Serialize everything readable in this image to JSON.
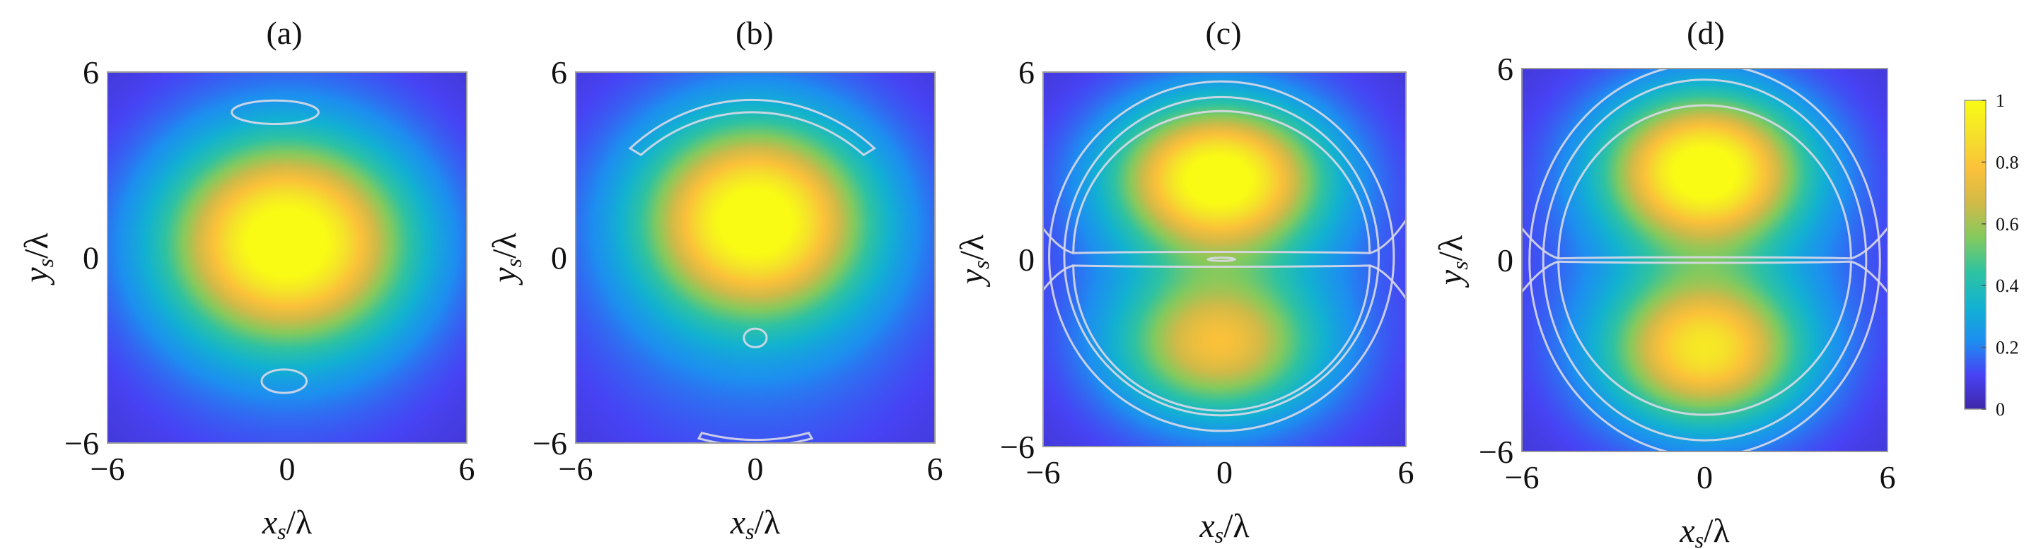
{
  "chart_data": [
    {
      "type": "heatmap",
      "title": "(a)",
      "xlabel_main": "x",
      "xlabel_sub": "s",
      "xlabel_tail": "/λ",
      "ylabel_main": "y",
      "ylabel_sub": "s",
      "ylabel_tail": "/λ",
      "xlim": [
        -6,
        6
      ],
      "ylim": [
        -6,
        6
      ],
      "xticks": [
        "−6",
        "0",
        "6"
      ],
      "yticks": [
        "−6",
        "0",
        "6"
      ],
      "field": {
        "blobs": [
          {
            "x": 0,
            "y": 0.5,
            "sx": 2.7,
            "sy": 2.2,
            "amp": 0.9
          }
        ],
        "halo": {
          "sx": 4.8,
          "sy": 5.2,
          "amp": 0.18
        }
      },
      "contours": [
        {
          "shape": "ellipse",
          "cx": -0.4,
          "cy": 4.7,
          "rx": 1.45,
          "ry": 0.38
        },
        {
          "shape": "ellipse",
          "cx": -0.1,
          "cy": -4.0,
          "rx": 0.75,
          "ry": 0.38
        }
      ]
    },
    {
      "type": "heatmap",
      "title": "(b)",
      "xlabel_main": "x",
      "xlabel_sub": "s",
      "xlabel_tail": "/λ",
      "ylabel_main": "y",
      "ylabel_sub": "s",
      "ylabel_tail": "/λ",
      "xlim": [
        -6,
        6
      ],
      "ylim": [
        -6,
        6
      ],
      "xticks": [
        "−6",
        "0",
        "6"
      ],
      "yticks": [
        "−6",
        "0",
        "6"
      ],
      "field": {
        "blobs": [
          {
            "x": 0,
            "y": 1.2,
            "sx": 2.5,
            "sy": 2.1,
            "amp": 0.88
          }
        ],
        "halo": {
          "sx": 5.0,
          "sy": 5.2,
          "amp": 0.2
        }
      },
      "contours": [
        {
          "shape": "crescent",
          "cx": -0.1,
          "cy": -1.0,
          "r_outer": 6.1,
          "r_inner": 5.7,
          "span_deg": 84
        },
        {
          "shape": "ellipse",
          "cx": 0.0,
          "cy": -2.6,
          "rx": 0.38,
          "ry": 0.3
        },
        {
          "shape": "crescent-bottom",
          "cx": 0.0,
          "cy": 1.2,
          "r_outer": 7.3,
          "r_inner": 7.1,
          "span_deg": 30
        }
      ]
    },
    {
      "type": "heatmap",
      "title": "(c)",
      "xlabel_main": "x",
      "xlabel_sub": "s",
      "xlabel_tail": "/λ",
      "ylabel_main": "y",
      "ylabel_sub": "s",
      "ylabel_tail": "/λ",
      "xlim": [
        -6,
        6
      ],
      "ylim": [
        -6,
        6
      ],
      "xticks": [
        "−6",
        "0",
        "6"
      ],
      "yticks": [
        "−6",
        "0",
        "6"
      ],
      "field": {
        "blobs": [
          {
            "x": -0.2,
            "y": 2.6,
            "sx": 2.3,
            "sy": 1.6,
            "amp": 0.92
          },
          {
            "x": -0.2,
            "y": -2.7,
            "sx": 2.3,
            "sy": 1.6,
            "amp": 0.6
          }
        ],
        "halo": {
          "sx": 5.0,
          "sy": 5.5,
          "amp": 0.16
        }
      },
      "contours": [
        {
          "shape": "ellipse",
          "cx": -0.1,
          "cy": 0.1,
          "rx": 5.7,
          "ry": 5.6
        },
        {
          "shape": "ellipse",
          "cx": -0.1,
          "cy": 0.1,
          "rx": 5.2,
          "ry": 5.1
        },
        {
          "shape": "lobe-top",
          "cx": -0.1,
          "cy": 0.2,
          "rx": 4.9,
          "ry": 4.55
        },
        {
          "shape": "lobe-bottom",
          "cx": -0.1,
          "cy": -0.2,
          "rx": 4.9,
          "ry": 4.65
        },
        {
          "shape": "ellipse",
          "cx": -0.1,
          "cy": 0.0,
          "rx": 0.45,
          "ry": 0.05
        }
      ]
    },
    {
      "type": "heatmap",
      "title": "(d)",
      "xlabel_main": "x",
      "xlabel_sub": "s",
      "xlabel_tail": "/λ",
      "ylabel_main": "y",
      "ylabel_sub": "s",
      "ylabel_tail": "/λ",
      "xlim": [
        -6,
        6
      ],
      "ylim": [
        -6,
        6
      ],
      "xticks": [
        "−6",
        "0",
        "6"
      ],
      "yticks": [
        "−6",
        "0",
        "6"
      ],
      "field": {
        "blobs": [
          {
            "x": 0,
            "y": 2.8,
            "sx": 2.2,
            "sy": 1.6,
            "amp": 0.93
          },
          {
            "x": 0,
            "y": -2.8,
            "sx": 2.2,
            "sy": 1.6,
            "amp": 0.75
          }
        ],
        "halo": {
          "sx": 5.0,
          "sy": 5.5,
          "amp": 0.16
        }
      },
      "contours": [
        {
          "shape": "ellipse",
          "cx": 0.0,
          "cy": 0.0,
          "rx": 5.75,
          "ry": 6.15
        },
        {
          "shape": "ellipse",
          "cx": 0.0,
          "cy": 0.0,
          "rx": 5.3,
          "ry": 5.65
        },
        {
          "shape": "lobe-top",
          "cx": 0.0,
          "cy": 0.05,
          "rx": 4.8,
          "ry": 4.8
        },
        {
          "shape": "lobe-bottom",
          "cx": 0.0,
          "cy": -0.05,
          "rx": 4.8,
          "ry": 4.8
        }
      ]
    }
  ],
  "colorbar": {
    "range": [
      0,
      1
    ],
    "ticks": [
      "1",
      "0.8",
      "0.6",
      "0.4",
      "0.2",
      "0"
    ],
    "colormap": "parula",
    "stops": [
      "#3e26a8",
      "#4743f4",
      "#1d8ff0",
      "#12b2d1",
      "#2fc3a1",
      "#83ca5e",
      "#d0ba48",
      "#fbc13a",
      "#f5e12b",
      "#f9fb15"
    ]
  },
  "contour_color": "#d9d9e8"
}
